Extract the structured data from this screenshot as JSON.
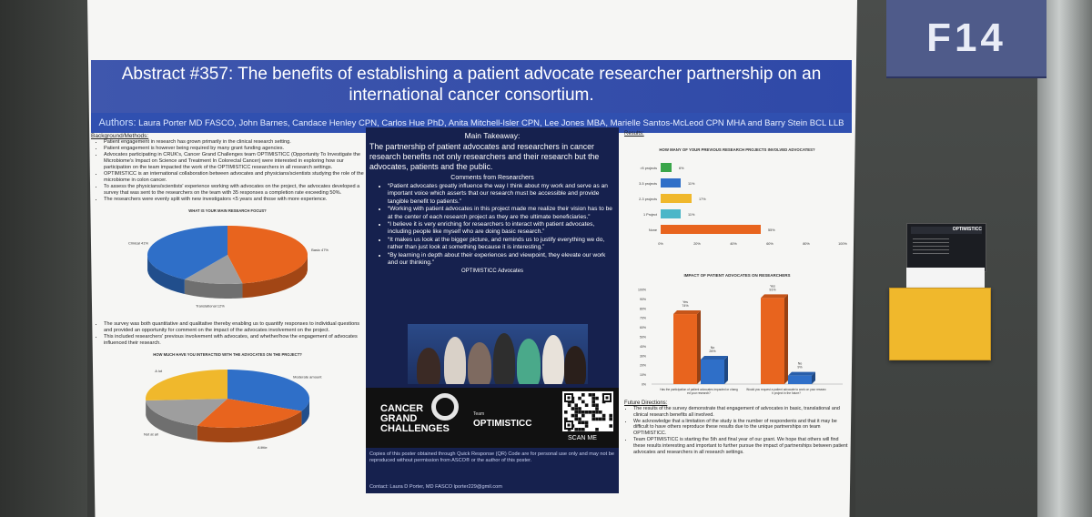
{
  "booth": {
    "label": "F14"
  },
  "poster": {
    "title": "Abstract #357: The benefits of establishing a patient advocate researcher partnership on an international cancer consortium.",
    "authors_label": "Authors:",
    "authors": "Laura Porter MD FASCO, John Barnes, Candace Henley CPN, Carlos Hue PhD, Anita Mitchell-Isler CPN, Lee Jones MBA, Marielle Santos-McLeod CPN MHA and Barry Stein BCL LLB",
    "background": {
      "heading": "Background/Methods:",
      "bullets": [
        "Patient engagement in research has grown primarily in the clinical research setting.",
        "Patient engagement is however being required by many grant funding agencies.",
        "Advocates participating in CRUK's, Cancer Grand Challenges team OPTIMISTICC (Opportunity To Investigate the Microbiome's Impact on Science and Treatment In Colorectal Cancer) were interested in exploring how our participation on the team impacted the work of the OPTIMISTICC researchers in all research settings.",
        "OPTIMISTICC is an international collaboration between advocates and physicians/scientists studying the role of the microbiome in colon cancer.",
        "To assess the physicians/scientists' experience working with advocates on the project, the advocates developed a survey that was sent to the researchers on the team with 35 responses a completion rate exceeding 50%.",
        "The researchers were evenly split with new investigators <5 years and those with more experience."
      ],
      "bullets2": [
        "The survey was both quantitative and qualitative thereby enabling us to quantify responses to individual questions and provided an opportunity for comment on the impact of the advocates involvement on the project.",
        "This included researchers' previous involvement with advocates, and whether/how the engagement of advocates influenced their research."
      ]
    },
    "takeaway": {
      "heading": "Main Takeaway:",
      "text": "The partnership of patient advocates and researchers in cancer research benefits not only researchers and their research but the advocates, patients and the public.",
      "comments_heading": "Comments from Researchers",
      "quotes": [
        "“Patient advocates greatly influence the way I think about my work and serve as an important voice which asserts that our research must be accessible and provide tangible benefit to patients.”",
        "“Working with patient advocates in this project made me realize their vision has to be at the center of each research project as they are the ultimate beneficiaries.”",
        "“I believe it is very enriching for researchers to interact with patient advocates, including people like myself who are doing basic research.”",
        "“It makes us look at the bigger picture, and reminds us to justify everything we do, rather than just look at something because it is interesting.”",
        "“By learning in depth about their experiences and viewpoint, they elevate our work and our thinking.”"
      ],
      "advocates_caption": "OPTIMISTICC Advocates",
      "logo": {
        "cgc": [
          "CANCER",
          "GRAND",
          "CHALLENGES"
        ],
        "team_label": "Team",
        "team_name": "OPTIMISTICC",
        "scan": "SCAN ME"
      },
      "disclaimer": "Copies of this poster obtained through Quick Response (QR) Code are for personal use only and may not be reproduced without permission from ASCO® or the author of this poster.",
      "contact": "Contact: Laura D Porter, MD FASCO lporter229@gmil.com"
    },
    "results_heading": "Results:",
    "future": {
      "heading": "Future Directions:",
      "bullets": [
        "The results of the survey demonstrate that engagement of advocates in basic, translational and clinical research benefits all involved.",
        "We acknowledge that a limitation of the study is the number of respondents and that it may be difficult to have others reproduce these results due to the unique partnerships on team OPTIMISTICC.",
        "Team OPTIMISTICC is starting the 5th and final year of our grant. We hope that others will find these results interesting and important to further pursue the impact of partnerships between patient advocates and researchers in all research settings."
      ]
    }
  },
  "chart_data": [
    {
      "type": "pie",
      "title": "WHAT IS YOUR MAIN RESEARCH FOCUS?",
      "categories": [
        "Basic",
        "Translational",
        "Clinical"
      ],
      "values": [
        47,
        12,
        41
      ],
      "labels": [
        "Basic 47%",
        "Translational 12%",
        "Clinical 41%"
      ],
      "colors": [
        "#e8641e",
        "#9e9e9e",
        "#2f6fc8"
      ]
    },
    {
      "type": "pie",
      "title": "HOW MUCH HAVE YOU INTERACTED WITH THE ADVOCATES ON THE PROJECT?",
      "categories": [
        "Moderate amount",
        "A little",
        "Not at all",
        "A lot"
      ],
      "values": [
        32,
        24,
        18,
        26
      ],
      "labels": [
        "Moderate amount",
        "A little",
        "Not at all",
        "A lot"
      ],
      "colors": [
        "#2f6fc8",
        "#e8641e",
        "#9e9e9e",
        "#f0b82c"
      ]
    },
    {
      "type": "bar",
      "title": "HOW MANY OF YOUR PREVIOUS RESEARCH PROJECTS INVOLVED ADVOCATES?",
      "categories": [
        ">5 projects",
        "3-5 projects",
        "2-3 projects",
        "1 Project",
        "None"
      ],
      "values": [
        6,
        11,
        17,
        11,
        55
      ],
      "labels": [
        "6%",
        "11%",
        "17%",
        "11%",
        "55%"
      ],
      "colors": [
        "#3aa64a",
        "#2f6fc8",
        "#f0b82c",
        "#4bb6c8",
        "#e8641e"
      ],
      "xticks": [
        "0%",
        "20%",
        "40%",
        "60%",
        "80%",
        "100%"
      ],
      "xlim": [
        0,
        100
      ]
    },
    {
      "type": "bar",
      "title": "IMPACT OF PATIENT ADVOCATES ON RESEARCHERS",
      "categories": [
        "Has the participation of patient advocates impacted or changed your research?",
        "Would you request a patient advocate to work on your research project in the future?"
      ],
      "series": [
        {
          "name": "Yes",
          "values": [
            74,
            91
          ]
        },
        {
          "name": "No",
          "values": [
            26,
            9
          ]
        }
      ],
      "labels": [
        "74%",
        "26%",
        "91%",
        "9%"
      ],
      "colors": [
        "#e8641e",
        "#2f6fc8"
      ],
      "yticks": [
        "100%",
        "90%",
        "80%",
        "70%",
        "60%",
        "50%",
        "40%",
        "30%",
        "20%",
        "10%",
        "0%"
      ],
      "ylim": [
        0,
        100
      ]
    }
  ]
}
